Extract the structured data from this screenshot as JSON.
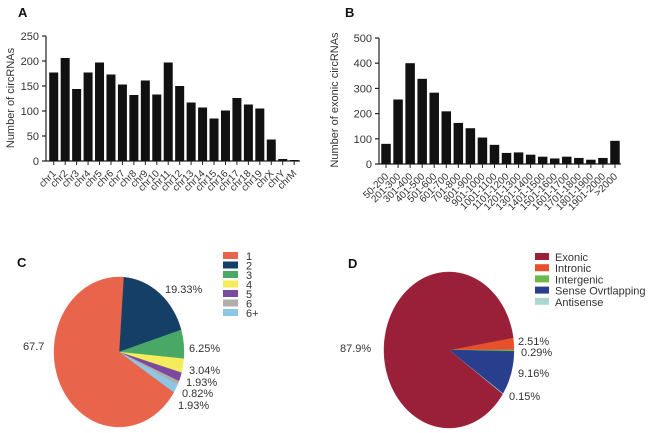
{
  "chart_data": [
    {
      "panel": "A",
      "type": "bar",
      "title": "",
      "xlabel": "",
      "ylabel": "Number of circRNAs",
      "ylim": [
        0,
        250
      ],
      "yticks": [
        0,
        50,
        100,
        150,
        200,
        250
      ],
      "categories": [
        "chr1",
        "chr2",
        "chr3",
        "chr4",
        "chr5",
        "chr6",
        "chr7",
        "chr8",
        "chr9",
        "chr10",
        "chr11",
        "chr12",
        "chr13",
        "chr14",
        "chr15",
        "chr16",
        "chr17",
        "chr18",
        "chr19",
        "chrX",
        "chrY",
        "chrM"
      ],
      "values": [
        177,
        206,
        144,
        177,
        197,
        173,
        153,
        132,
        161,
        133,
        197,
        150,
        117,
        107,
        85,
        101,
        126,
        113,
        105,
        43,
        4,
        2
      ],
      "color": "#111111",
      "grid": false
    },
    {
      "panel": "B",
      "type": "bar",
      "title": "",
      "xlabel": "",
      "ylabel": "Number of exonic circRNAs",
      "ylim": [
        0,
        500
      ],
      "yticks": [
        0,
        100,
        200,
        300,
        400,
        500
      ],
      "categories": [
        "50-200",
        "201-300",
        "301-400",
        "401-500",
        "501-600",
        "601-700",
        "701-800",
        "801-900",
        "901-1000",
        "1001-1100",
        "1101-1200",
        "1201-1300",
        "1301-1400",
        "1401-1500",
        "1501-1600",
        "1601-1700",
        "1701-1800",
        "1801-1900",
        "1901-2000",
        ">2000"
      ],
      "values": [
        80,
        256,
        400,
        338,
        283,
        209,
        163,
        142,
        105,
        76,
        44,
        46,
        37,
        29,
        22,
        29,
        24,
        17,
        24,
        92
      ],
      "color": "#111111",
      "grid": false
    },
    {
      "panel": "C",
      "type": "pie",
      "title": "",
      "legend_position": "top-right",
      "slices": [
        {
          "label": "1",
          "value": 67.7,
          "display": "67.7",
          "color": "#e8644a"
        },
        {
          "label": "2",
          "value": 19.33,
          "display": "19.33%",
          "color": "#163f68"
        },
        {
          "label": "3",
          "value": 6.25,
          "display": "6.25%",
          "color": "#4aa866"
        },
        {
          "label": "4",
          "value": 3.04,
          "display": "3.04%",
          "color": "#f5ec5c"
        },
        {
          "label": "5",
          "value": 1.93,
          "display": "1.93%",
          "color": "#7b4aa0"
        },
        {
          "label": "6",
          "value": 0.82,
          "display": "0.82%",
          "color": "#b0adaa"
        },
        {
          "label": "6+",
          "value": 1.93,
          "display": "1.93%",
          "color": "#8ec6e6"
        }
      ]
    },
    {
      "panel": "D",
      "type": "pie",
      "title": "",
      "legend_position": "top-right",
      "slices": [
        {
          "label": "Exonic",
          "value": 87.9,
          "display": "87.9%",
          "color": "#9a1f38"
        },
        {
          "label": "Intronic",
          "value": 2.51,
          "display": "2.51%",
          "color": "#e8502c"
        },
        {
          "label": "Intergenic",
          "value": 0.29,
          "display": "0.29%",
          "color": "#6cb84a"
        },
        {
          "label": "Sense Ovrtlapping",
          "value": 9.16,
          "display": "9.16%",
          "color": "#2a3e8e"
        },
        {
          "label": "Antisense",
          "value": 0.15,
          "display": "0.15%",
          "color": "#a8d8d0"
        }
      ]
    }
  ],
  "panels": {
    "A": {
      "letter": "A"
    },
    "B": {
      "letter": "B"
    },
    "C": {
      "letter": "C"
    },
    "D": {
      "letter": "D"
    }
  }
}
